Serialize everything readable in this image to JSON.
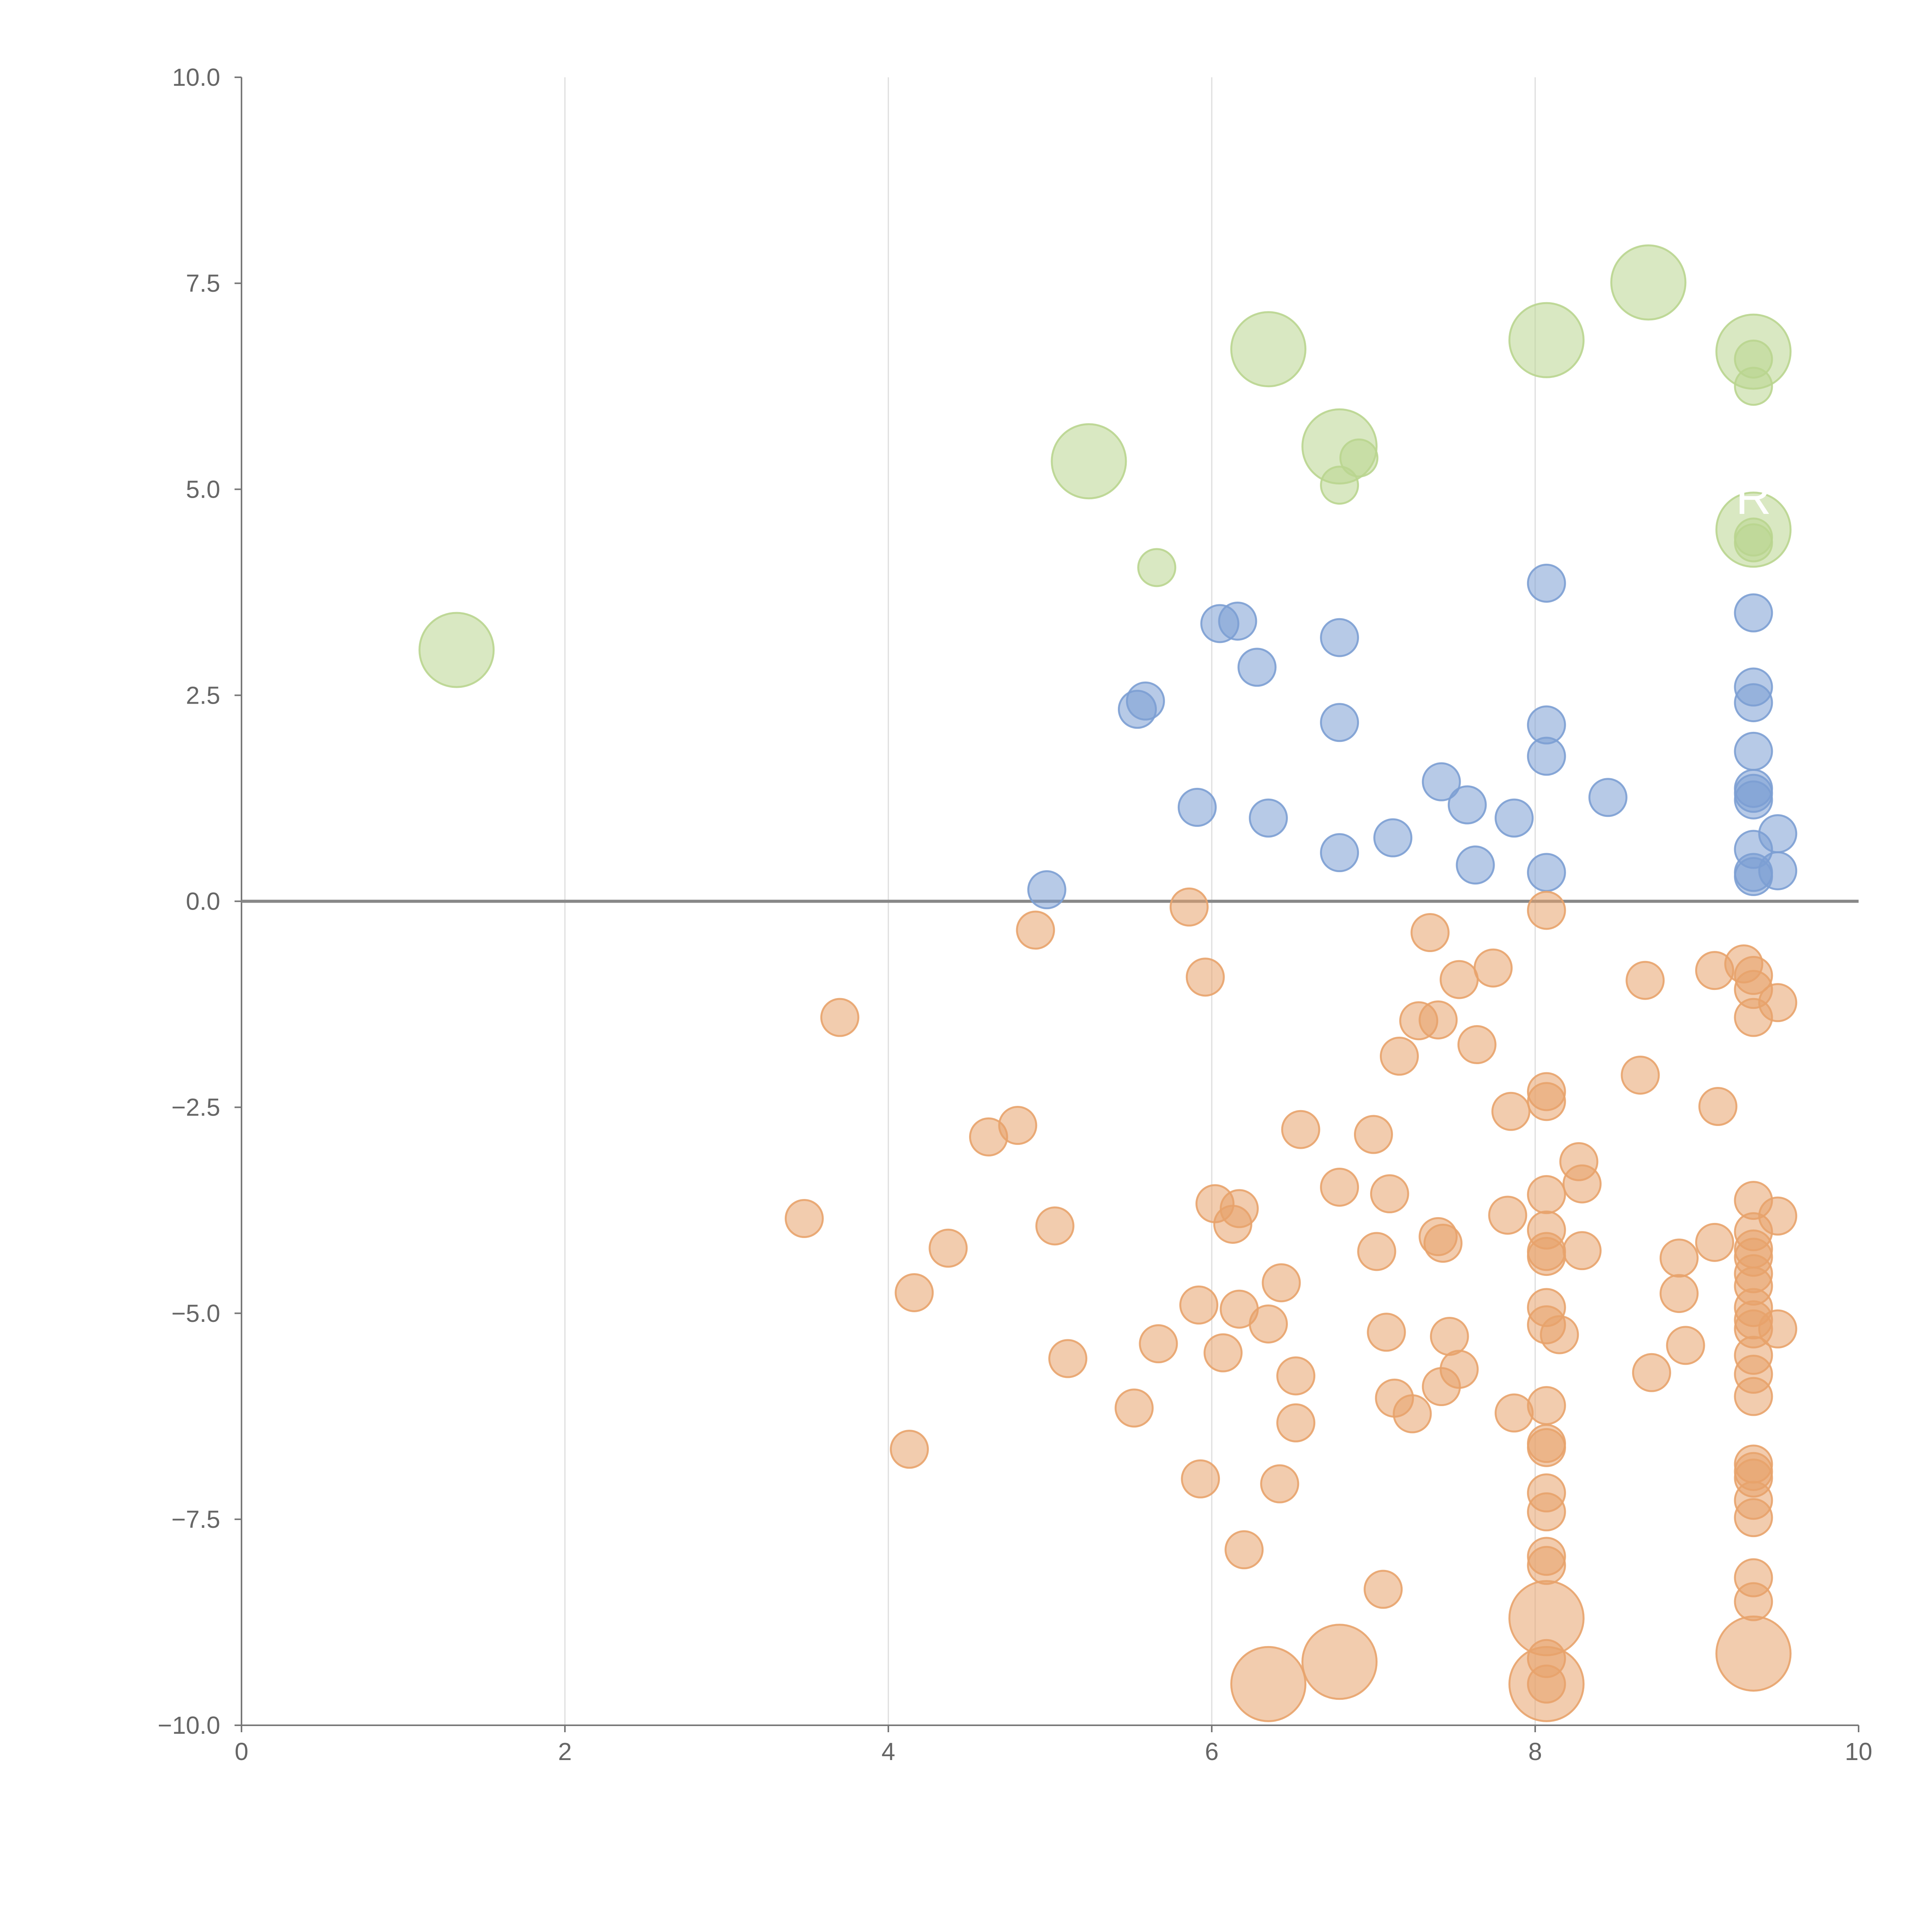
{
  "chart_data": {
    "type": "scatter",
    "title": "",
    "xlabel": "",
    "ylabel": "",
    "xlim": [
      0,
      10
    ],
    "ylim": [
      -10,
      10
    ],
    "grid": "vertical",
    "x_ticks": [
      0,
      2,
      4,
      6,
      8,
      10
    ],
    "x_tick_labels": [
      "0",
      "2",
      "4",
      "6",
      "8",
      "10"
    ],
    "y_ticks": [
      -10,
      -7.5,
      -5,
      -2.5,
      0,
      2.5,
      5,
      7.5,
      10
    ],
    "y_tick_labels": [
      "−10.0",
      "−7.5",
      "−5.0",
      "−2.5",
      "0.0",
      "2.5",
      "5.0",
      "7.5",
      "10.0"
    ],
    "reference_line_y": 0,
    "colors": {
      "orange": "#e8a36b",
      "blue": "#7c9fd3",
      "green": "#b9d58f",
      "axis": "#777777",
      "grid": "#dddddd",
      "zero_line": "#888888"
    },
    "series": [
      {
        "color": "#7c9fd3",
        "points": [
          [
            4.98,
            0.14,
            1
          ],
          [
            5.54,
            2.33,
            1
          ],
          [
            5.59,
            2.43,
            1
          ],
          [
            5.91,
            1.14,
            1
          ],
          [
            6.05,
            3.37,
            1
          ],
          [
            6.16,
            3.4,
            1
          ],
          [
            6.28,
            2.84,
            1
          ],
          [
            6.35,
            1.01,
            1
          ],
          [
            6.79,
            0.59,
            1
          ],
          [
            6.79,
            2.17,
            1
          ],
          [
            6.79,
            3.2,
            1
          ],
          [
            7.12,
            0.77,
            1
          ],
          [
            7.42,
            1.45,
            1
          ],
          [
            7.58,
            1.17,
            1
          ],
          [
            7.63,
            0.44,
            1
          ],
          [
            7.87,
            1.01,
            1
          ],
          [
            8.07,
            3.86,
            1
          ],
          [
            8.07,
            2.14,
            1
          ],
          [
            8.07,
            1.76,
            1
          ],
          [
            8.07,
            0.35,
            1
          ],
          [
            8.45,
            1.26,
            1
          ],
          [
            9.35,
            3.5,
            1
          ],
          [
            9.35,
            2.6,
            1
          ],
          [
            9.35,
            2.41,
            1
          ],
          [
            9.35,
            1.82,
            1
          ],
          [
            9.35,
            1.37,
            1
          ],
          [
            9.35,
            1.31,
            1
          ],
          [
            9.35,
            1.23,
            1
          ],
          [
            9.35,
            0.63,
            1
          ],
          [
            9.35,
            0.35,
            1
          ],
          [
            9.35,
            0.3,
            1
          ],
          [
            9.5,
            0.82,
            1
          ],
          [
            9.5,
            0.37,
            1
          ]
        ]
      },
      {
        "color": "#e8a36b",
        "points": [
          [
            3.48,
            -3.85,
            1
          ],
          [
            3.7,
            -1.41,
            1
          ],
          [
            4.13,
            -6.65,
            1
          ],
          [
            4.16,
            -4.75,
            1
          ],
          [
            4.37,
            -4.21,
            1
          ],
          [
            4.62,
            -2.86,
            1
          ],
          [
            4.8,
            -2.72,
            1
          ],
          [
            4.91,
            -0.35,
            1
          ],
          [
            5.03,
            -3.94,
            1
          ],
          [
            5.11,
            -5.55,
            1
          ],
          [
            5.52,
            -6.15,
            1
          ],
          [
            5.67,
            -5.37,
            1
          ],
          [
            5.86,
            -0.07,
            1
          ],
          [
            5.92,
            -4.9,
            1
          ],
          [
            5.93,
            -7.01,
            1
          ],
          [
            5.96,
            -0.92,
            1
          ],
          [
            6.02,
            -3.67,
            1
          ],
          [
            6.07,
            -5.48,
            1
          ],
          [
            6.13,
            -3.92,
            1
          ],
          [
            6.17,
            -3.73,
            1
          ],
          [
            6.17,
            -4.95,
            1
          ],
          [
            6.2,
            -7.87,
            1
          ],
          [
            6.35,
            -5.13,
            1
          ],
          [
            6.42,
            -7.07,
            1
          ],
          [
            6.43,
            -4.63,
            1
          ],
          [
            6.52,
            -5.76,
            1
          ],
          [
            6.52,
            -6.33,
            1
          ],
          [
            6.55,
            -2.77,
            1
          ],
          [
            6.79,
            -3.47,
            1
          ],
          [
            7.0,
            -2.83,
            1
          ],
          [
            7.02,
            -4.25,
            1
          ],
          [
            7.06,
            -8.35,
            1
          ],
          [
            7.08,
            -5.23,
            1
          ],
          [
            7.1,
            -3.55,
            1
          ],
          [
            7.13,
            -6.03,
            1
          ],
          [
            7.16,
            -1.88,
            1
          ],
          [
            7.24,
            -6.22,
            1
          ],
          [
            7.28,
            -1.45,
            1
          ],
          [
            7.35,
            -0.38,
            1
          ],
          [
            7.4,
            -1.44,
            1
          ],
          [
            7.4,
            -4.07,
            1
          ],
          [
            7.42,
            -5.89,
            1
          ],
          [
            7.43,
            -4.15,
            1
          ],
          [
            7.47,
            -5.28,
            1
          ],
          [
            7.53,
            -0.95,
            1
          ],
          [
            7.53,
            -5.68,
            1
          ],
          [
            7.64,
            -1.74,
            1
          ],
          [
            7.74,
            -0.81,
            1
          ],
          [
            7.83,
            -3.81,
            1
          ],
          [
            7.85,
            -2.55,
            1
          ],
          [
            7.87,
            -6.21,
            1
          ],
          [
            8.07,
            -0.11,
            1
          ],
          [
            8.07,
            -2.31,
            1
          ],
          [
            8.07,
            -2.43,
            1
          ],
          [
            8.07,
            -3.56,
            1
          ],
          [
            8.07,
            -3.99,
            1
          ],
          [
            8.07,
            -4.25,
            1
          ],
          [
            8.07,
            -4.31,
            1
          ],
          [
            8.07,
            -4.93,
            1
          ],
          [
            8.07,
            -5.14,
            1
          ],
          [
            8.07,
            -6.12,
            1
          ],
          [
            8.07,
            -6.58,
            1
          ],
          [
            8.07,
            -6.63,
            1
          ],
          [
            8.07,
            -7.18,
            1
          ],
          [
            8.07,
            -7.41,
            1
          ],
          [
            8.07,
            -7.95,
            1
          ],
          [
            8.07,
            -8.06,
            1
          ],
          [
            8.07,
            -9.19,
            1
          ],
          [
            8.07,
            -9.5,
            1
          ],
          [
            8.15,
            -5.26,
            1
          ],
          [
            8.27,
            -3.16,
            1
          ],
          [
            8.29,
            -3.43,
            1
          ],
          [
            8.29,
            -4.24,
            1
          ],
          [
            8.65,
            -2.11,
            1
          ],
          [
            8.68,
            -0.96,
            1
          ],
          [
            8.72,
            -5.72,
            1
          ],
          [
            8.89,
            -4.33,
            1
          ],
          [
            8.89,
            -4.76,
            1
          ],
          [
            8.93,
            -5.39,
            1
          ],
          [
            9.11,
            -0.84,
            1
          ],
          [
            9.11,
            -4.14,
            1
          ],
          [
            9.13,
            -2.49,
            1
          ],
          [
            9.29,
            -0.76,
            1
          ],
          [
            9.35,
            -0.9,
            1
          ],
          [
            9.35,
            -1.07,
            1
          ],
          [
            9.35,
            -1.41,
            1
          ],
          [
            9.35,
            -3.63,
            1
          ],
          [
            9.35,
            -4.01,
            1
          ],
          [
            9.35,
            -4.22,
            1
          ],
          [
            9.35,
            -4.32,
            1
          ],
          [
            9.35,
            -4.52,
            1
          ],
          [
            9.35,
            -4.67,
            1
          ],
          [
            9.35,
            -4.93,
            1
          ],
          [
            9.35,
            -5.08,
            1
          ],
          [
            9.35,
            -5.19,
            1
          ],
          [
            9.35,
            -5.51,
            1
          ],
          [
            9.35,
            -5.74,
            1
          ],
          [
            9.35,
            -6.01,
            1
          ],
          [
            9.35,
            -6.83,
            1
          ],
          [
            9.35,
            -6.92,
            1
          ],
          [
            9.35,
            -7.0,
            1
          ],
          [
            9.35,
            -7.27,
            1
          ],
          [
            9.35,
            -7.48,
            1
          ],
          [
            9.35,
            -8.21,
            1
          ],
          [
            9.35,
            -8.5,
            1
          ],
          [
            9.5,
            -1.23,
            1
          ],
          [
            9.5,
            -3.82,
            1
          ],
          [
            9.5,
            -5.19,
            1
          ],
          [
            6.35,
            -9.5,
            4
          ],
          [
            6.79,
            -9.23,
            4
          ],
          [
            8.07,
            -8.7,
            4
          ],
          [
            8.07,
            -9.5,
            4
          ],
          [
            9.35,
            -9.13,
            4
          ]
        ]
      },
      {
        "color": "#b9d58f",
        "points": [
          [
            1.33,
            3.05,
            4
          ],
          [
            5.24,
            5.34,
            4
          ],
          [
            5.66,
            4.05,
            1
          ],
          [
            6.35,
            6.7,
            4
          ],
          [
            6.79,
            5.52,
            4
          ],
          [
            6.79,
            5.05,
            1
          ],
          [
            6.91,
            5.38,
            1
          ],
          [
            8.07,
            6.81,
            4
          ],
          [
            8.7,
            7.51,
            4
          ],
          [
            9.35,
            6.67,
            4
          ],
          [
            9.35,
            6.58,
            1
          ],
          [
            9.35,
            6.25,
            1
          ],
          [
            9.35,
            4.51,
            4
          ],
          [
            9.35,
            4.42,
            1
          ],
          [
            9.35,
            4.35,
            1
          ]
        ]
      }
    ],
    "annotations": [
      {
        "text": "R",
        "x": 9.35,
        "y": 4.7
      }
    ]
  }
}
